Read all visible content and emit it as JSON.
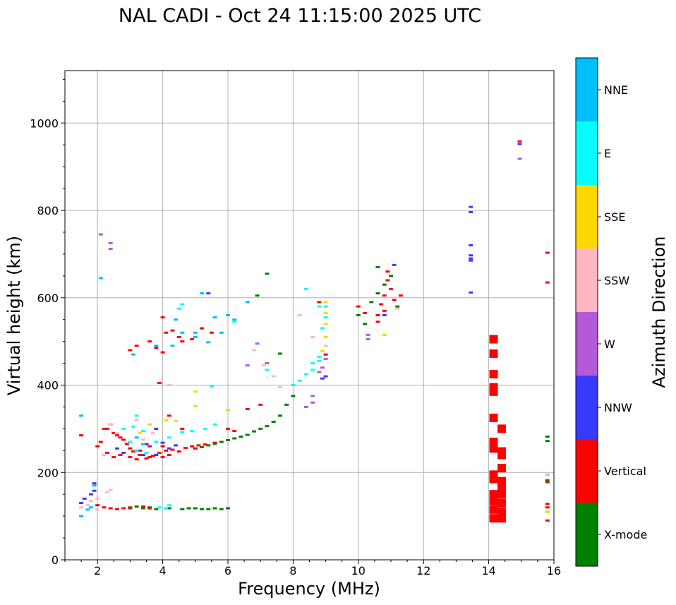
{
  "chart_data": {
    "type": "scatter",
    "title": "NAL CADI - Oct 24 11:15:00 2025 UTC",
    "xlabel": "Frequency (MHz)",
    "ylabel": "Virtual height (km)",
    "xlim": [
      1,
      16
    ],
    "ylim": [
      0,
      1120
    ],
    "xticks": [
      "2",
      "4",
      "6",
      "8",
      "10",
      "12",
      "14",
      "16"
    ],
    "yticks": [
      "0",
      "200",
      "400",
      "600",
      "800",
      "1000"
    ],
    "grid": true,
    "colorbar": {
      "label": "Azimuth Direction",
      "categories": [
        {
          "name": "X-mode",
          "color": "#008000"
        },
        {
          "name": "Vertical",
          "color": "#ff0000"
        },
        {
          "name": "NNW",
          "color": "#3a3aff"
        },
        {
          "name": "W",
          "color": "#b45ad7"
        },
        {
          "name": "SSW",
          "color": "#ffb6c1"
        },
        {
          "name": "SSE",
          "color": "#ffd700"
        },
        {
          "name": "E",
          "color": "#00ffff"
        },
        {
          "name": "NNE",
          "color": "#00bfff"
        }
      ]
    },
    "series": [
      {
        "name": "X-mode",
        "points": [
          [
            3.0,
            118
          ],
          [
            3.2,
            122
          ],
          [
            3.4,
            118
          ],
          [
            3.6,
            120
          ],
          [
            3.8,
            116
          ],
          [
            4.2,
            118
          ],
          [
            4.6,
            116
          ],
          [
            4.8,
            118
          ],
          [
            5.0,
            118
          ],
          [
            5.2,
            116
          ],
          [
            5.4,
            116
          ],
          [
            5.6,
            118
          ],
          [
            5.8,
            116
          ],
          [
            6.0,
            118
          ],
          [
            5.0,
            255
          ],
          [
            5.2,
            258
          ],
          [
            5.4,
            262
          ],
          [
            5.6,
            266
          ],
          [
            5.8,
            270
          ],
          [
            6.0,
            274
          ],
          [
            6.2,
            278
          ],
          [
            6.4,
            282
          ],
          [
            6.6,
            286
          ],
          [
            6.8,
            294
          ],
          [
            7.0,
            300
          ],
          [
            7.2,
            306
          ],
          [
            7.4,
            316
          ],
          [
            7.6,
            330
          ],
          [
            7.8,
            355
          ],
          [
            8.0,
            375
          ],
          [
            7.6,
            472
          ],
          [
            10.0,
            560
          ],
          [
            10.2,
            540
          ],
          [
            10.4,
            590
          ],
          [
            10.6,
            610
          ],
          [
            10.8,
            630
          ],
          [
            11.0,
            650
          ],
          [
            11.2,
            580
          ],
          [
            10.6,
            670
          ],
          [
            7.2,
            655
          ],
          [
            6.9,
            605
          ],
          [
            15.8,
            282
          ],
          [
            15.8,
            272
          ],
          [
            15.8,
            182
          ],
          [
            15.8,
            110
          ]
        ]
      },
      {
        "name": "Vertical",
        "points": [
          [
            1.5,
            285
          ],
          [
            2.0,
            125
          ],
          [
            2.2,
            120
          ],
          [
            2.4,
            118
          ],
          [
            2.6,
            116
          ],
          [
            2.8,
            118
          ],
          [
            3.0,
            120
          ],
          [
            3.4,
            122
          ],
          [
            3.6,
            118
          ],
          [
            2.3,
            300
          ],
          [
            2.5,
            290
          ],
          [
            2.7,
            280
          ],
          [
            2.9,
            265
          ],
          [
            3.1,
            248
          ],
          [
            3.3,
            240
          ],
          [
            3.5,
            232
          ],
          [
            3.7,
            238
          ],
          [
            3.9,
            245
          ],
          [
            4.1,
            250
          ],
          [
            4.3,
            252
          ],
          [
            4.5,
            248
          ],
          [
            4.7,
            256
          ],
          [
            4.9,
            260
          ],
          [
            5.1,
            262
          ],
          [
            5.3,
            264
          ],
          [
            2.3,
            245
          ],
          [
            2.5,
            235
          ],
          [
            2.7,
            240
          ],
          [
            3.0,
            235
          ],
          [
            3.2,
            230
          ],
          [
            3.6,
            235
          ],
          [
            4.0,
            235
          ],
          [
            4.2,
            240
          ],
          [
            2.0,
            260
          ],
          [
            2.1,
            270
          ],
          [
            2.2,
            300
          ],
          [
            2.4,
            310
          ],
          [
            2.6,
            285
          ],
          [
            2.8,
            275
          ],
          [
            3.0,
            255
          ],
          [
            3.3,
            250
          ],
          [
            3.5,
            265
          ],
          [
            3.8,
            270
          ],
          [
            4.0,
            260
          ],
          [
            4.6,
            300
          ],
          [
            5.0,
            255
          ],
          [
            5.6,
            268
          ],
          [
            6.0,
            300
          ],
          [
            3.0,
            480
          ],
          [
            3.2,
            490
          ],
          [
            3.6,
            500
          ],
          [
            3.8,
            485
          ],
          [
            4.0,
            475
          ],
          [
            4.1,
            520
          ],
          [
            4.3,
            525
          ],
          [
            4.5,
            510
          ],
          [
            4.0,
            555
          ],
          [
            4.6,
            500
          ],
          [
            4.9,
            505
          ],
          [
            5.2,
            530
          ],
          [
            5.5,
            520
          ],
          [
            3.9,
            405
          ],
          [
            4.2,
            330
          ],
          [
            6.2,
            295
          ],
          [
            6.6,
            345
          ],
          [
            7.0,
            355
          ],
          [
            8.8,
            590
          ],
          [
            9.0,
            470
          ],
          [
            10.0,
            580
          ],
          [
            10.2,
            565
          ],
          [
            10.6,
            560
          ],
          [
            10.7,
            585
          ],
          [
            10.8,
            605
          ],
          [
            10.9,
            640
          ],
          [
            11.0,
            620
          ],
          [
            11.1,
            595
          ],
          [
            10.6,
            545
          ],
          [
            10.8,
            570
          ],
          [
            11.3,
            605
          ],
          [
            10.9,
            660
          ],
          [
            14.15,
            505
          ],
          [
            14.15,
            472
          ],
          [
            14.15,
            425
          ],
          [
            14.15,
            395
          ],
          [
            14.15,
            385
          ],
          [
            14.15,
            325
          ],
          [
            14.15,
            270
          ],
          [
            14.15,
            255
          ],
          [
            14.15,
            195
          ],
          [
            14.15,
            185
          ],
          [
            14.15,
            150
          ],
          [
            14.15,
            135
          ],
          [
            14.15,
            115
          ],
          [
            14.15,
            95
          ],
          [
            14.4,
            300
          ],
          [
            14.4,
            248
          ],
          [
            14.4,
            240
          ],
          [
            14.4,
            210
          ],
          [
            14.4,
            180
          ],
          [
            14.4,
            165
          ],
          [
            14.4,
            150
          ],
          [
            14.4,
            130
          ],
          [
            14.4,
            110
          ],
          [
            14.4,
            95
          ],
          [
            14.95,
            958
          ],
          [
            15.8,
            703
          ],
          [
            15.8,
            635
          ],
          [
            15.8,
            195
          ],
          [
            15.8,
            178
          ],
          [
            15.8,
            128
          ],
          [
            15.8,
            120
          ],
          [
            15.8,
            90
          ]
        ]
      },
      {
        "name": "NNW",
        "points": [
          [
            1.5,
            130
          ],
          [
            1.6,
            140
          ],
          [
            1.8,
            150
          ],
          [
            1.9,
            158
          ],
          [
            1.9,
            175
          ],
          [
            2.6,
            255
          ],
          [
            2.8,
            245
          ],
          [
            3.0,
            270
          ],
          [
            3.2,
            250
          ],
          [
            3.4,
            240
          ],
          [
            3.6,
            260
          ],
          [
            3.8,
            240
          ],
          [
            4.0,
            268
          ],
          [
            4.2,
            255
          ],
          [
            4.4,
            262
          ],
          [
            3.8,
            300
          ],
          [
            5.4,
            610
          ],
          [
            8.9,
            415
          ],
          [
            9.0,
            420
          ],
          [
            10.8,
            560
          ],
          [
            11.1,
            675
          ],
          [
            13.45,
            808
          ],
          [
            13.45,
            796
          ],
          [
            13.45,
            720
          ],
          [
            13.45,
            697
          ],
          [
            13.45,
            690
          ],
          [
            13.45,
            685
          ],
          [
            13.45,
            612
          ],
          [
            14.95,
            952
          ]
        ]
      },
      {
        "name": "W",
        "points": [
          [
            2.1,
            745
          ],
          [
            2.4,
            725
          ],
          [
            2.4,
            712
          ],
          [
            6.6,
            445
          ],
          [
            6.9,
            495
          ],
          [
            7.2,
            450
          ],
          [
            8.4,
            350
          ],
          [
            8.6,
            360
          ],
          [
            8.6,
            375
          ],
          [
            8.8,
            430
          ],
          [
            8.9,
            440
          ],
          [
            9.0,
            460
          ],
          [
            10.3,
            515
          ],
          [
            10.3,
            505
          ],
          [
            14.95,
            918
          ]
        ]
      },
      {
        "name": "SSW",
        "points": [
          [
            1.5,
            120
          ],
          [
            1.7,
            125
          ],
          [
            1.8,
            135
          ],
          [
            2.0,
            115
          ],
          [
            2.0,
            140
          ],
          [
            2.3,
            155
          ],
          [
            2.4,
            160
          ],
          [
            2.2,
            240
          ],
          [
            2.4,
            310
          ],
          [
            2.6,
            290
          ],
          [
            2.8,
            300
          ],
          [
            3.2,
            320
          ],
          [
            3.4,
            275
          ],
          [
            3.7,
            290
          ],
          [
            4.2,
            400
          ],
          [
            6.8,
            480
          ],
          [
            7.1,
            445
          ],
          [
            7.4,
            420
          ],
          [
            7.6,
            395
          ],
          [
            8.2,
            560
          ],
          [
            8.6,
            510
          ],
          [
            9.0,
            490
          ],
          [
            11.2,
            575
          ],
          [
            15.8,
            195
          ]
        ]
      },
      {
        "name": "SSE",
        "points": [
          [
            3.3,
            290
          ],
          [
            3.6,
            310
          ],
          [
            4.1,
            320
          ],
          [
            4.4,
            318
          ],
          [
            5.0,
            385
          ],
          [
            5.0,
            352
          ],
          [
            6.0,
            343
          ],
          [
            8.9,
            478
          ],
          [
            9.0,
            590
          ],
          [
            9.0,
            565
          ],
          [
            9.0,
            540
          ],
          [
            9.0,
            510
          ],
          [
            10.8,
            515
          ],
          [
            15.8,
            110
          ]
        ]
      },
      {
        "name": "E",
        "points": [
          [
            2.8,
            300
          ],
          [
            3.1,
            305
          ],
          [
            3.2,
            330
          ],
          [
            3.4,
            295
          ],
          [
            3.0,
            270
          ],
          [
            3.2,
            250
          ],
          [
            3.5,
            245
          ],
          [
            3.8,
            270
          ],
          [
            4.2,
            280
          ],
          [
            4.6,
            292
          ],
          [
            4.9,
            295
          ],
          [
            5.3,
            300
          ],
          [
            5.6,
            310
          ],
          [
            3.9,
            120
          ],
          [
            4.1,
            118
          ],
          [
            4.2,
            125
          ],
          [
            4.5,
            575
          ],
          [
            4.6,
            585
          ],
          [
            5.5,
            398
          ],
          [
            8.0,
            400
          ],
          [
            8.2,
            410
          ],
          [
            8.4,
            425
          ],
          [
            8.6,
            435
          ],
          [
            8.6,
            450
          ],
          [
            8.8,
            455
          ],
          [
            8.8,
            465
          ],
          [
            8.9,
            530
          ],
          [
            9.0,
            555
          ],
          [
            9.0,
            580
          ],
          [
            6.2,
            545
          ],
          [
            7.2,
            435
          ],
          [
            8.4,
            620
          ],
          [
            8.8,
            580
          ]
        ]
      },
      {
        "name": "NNE",
        "points": [
          [
            1.5,
            100
          ],
          [
            1.5,
            330
          ],
          [
            1.7,
            115
          ],
          [
            1.8,
            120
          ],
          [
            1.9,
            170
          ],
          [
            2.1,
            645
          ],
          [
            3.1,
            470
          ],
          [
            3.2,
            280
          ],
          [
            3.4,
            265
          ],
          [
            3.8,
            490
          ],
          [
            4.3,
            490
          ],
          [
            4.4,
            550
          ],
          [
            4.6,
            520
          ],
          [
            5.0,
            510
          ],
          [
            5.4,
            498
          ],
          [
            5.6,
            555
          ],
          [
            5.8,
            520
          ],
          [
            6.0,
            560
          ],
          [
            6.2,
            550
          ],
          [
            6.6,
            590
          ],
          [
            5.2,
            610
          ],
          [
            5.0,
            520
          ]
        ]
      }
    ]
  }
}
